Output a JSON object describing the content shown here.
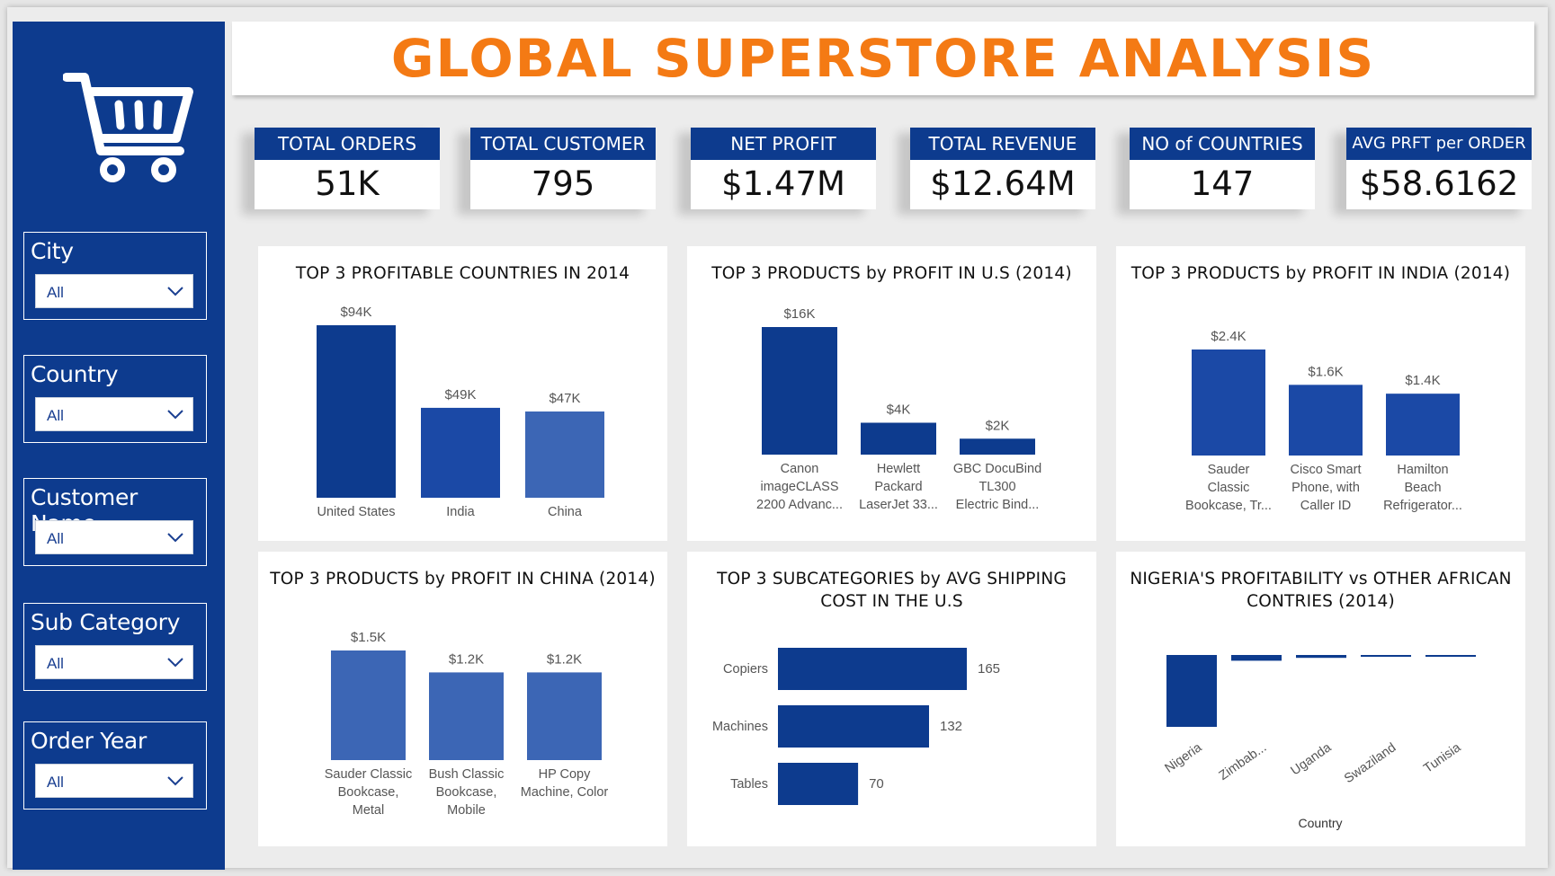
{
  "header": {
    "title": "GLOBAL SUPERSTORE ANALYSIS"
  },
  "sidebar": {
    "logo_icon": "shopping-cart-icon",
    "slicers": [
      {
        "label": "City",
        "value": "All"
      },
      {
        "label": "Country",
        "value": "All"
      },
      {
        "label": "Customer Name",
        "value": "All"
      },
      {
        "label": "Sub Category",
        "value": "All"
      },
      {
        "label": "Order Year",
        "value": "All"
      }
    ]
  },
  "kpis": [
    {
      "label": "TOTAL ORDERS",
      "value": "51K"
    },
    {
      "label": "TOTAL CUSTOMER",
      "value": "795"
    },
    {
      "label": "NET PROFIT",
      "value": "$1.47M"
    },
    {
      "label": "TOTAL REVENUE",
      "value": "$12.64M"
    },
    {
      "label": "NO of COUNTRIES",
      "value": "147"
    },
    {
      "label": "AVG PRFT per ORDER",
      "value": "$58.6162"
    }
  ],
  "colors": {
    "brand": "#0d3b8e",
    "title": "#f47a14",
    "bar_dark": "#0d3b8e",
    "bar_mid": "#1b49a6",
    "bar_light": "#3c66b5"
  },
  "chart_data": [
    {
      "id": "top-countries",
      "type": "bar",
      "title": "TOP 3 PROFITABLE COUNTRIES IN 2014",
      "categories": [
        "United States",
        "India",
        "China"
      ],
      "values": [
        94000,
        49000,
        47000
      ],
      "data_labels": [
        "$94K",
        "$49K",
        "$47K"
      ],
      "ylim": [
        0,
        94000
      ]
    },
    {
      "id": "top-products-us",
      "type": "bar",
      "title": "TOP 3 PRODUCTS by PROFIT IN U.S (2014)",
      "categories": [
        [
          "Canon",
          "imageCLASS",
          "2200 Advanc..."
        ],
        [
          "Hewlett",
          "Packard",
          "LaserJet 33..."
        ],
        [
          "GBC DocuBind",
          "TL300",
          "Electric Bind..."
        ]
      ],
      "values": [
        16000,
        4000,
        2000
      ],
      "data_labels": [
        "$16K",
        "$4K",
        "$2K"
      ],
      "ylim": [
        0,
        16000
      ]
    },
    {
      "id": "top-products-india",
      "type": "bar",
      "title": "TOP 3 PRODUCTS by PROFIT IN INDIA (2014)",
      "categories": [
        [
          "Sauder",
          "Classic",
          "Bookcase, Tr..."
        ],
        [
          "Cisco Smart",
          "Phone, with",
          "Caller ID"
        ],
        [
          "Hamilton",
          "Beach",
          "Refrigerator..."
        ]
      ],
      "values": [
        2400,
        1600,
        1400
      ],
      "data_labels": [
        "$2.4K",
        "$1.6K",
        "$1.4K"
      ],
      "ylim": [
        0,
        2400
      ]
    },
    {
      "id": "top-products-china",
      "type": "bar",
      "title": "TOP 3 PRODUCTS by PROFIT IN CHINA (2014)",
      "categories": [
        [
          "Sauder Classic",
          "Bookcase,",
          "Metal"
        ],
        [
          "Bush Classic",
          "Bookcase,",
          "Mobile"
        ],
        [
          "HP Copy",
          "Machine, Color"
        ]
      ],
      "values": [
        1500,
        1200,
        1200
      ],
      "data_labels": [
        "$1.5K",
        "$1.2K",
        "$1.2K"
      ],
      "ylim": [
        0,
        1500
      ]
    },
    {
      "id": "top-subcategories-shipping",
      "type": "bar",
      "orientation": "horizontal",
      "title": "TOP 3 SUBCATEGORIES by AVG SHIPPING COST IN THE U.S",
      "categories": [
        "Copiers",
        "Machines",
        "Tables"
      ],
      "values": [
        165,
        132,
        70
      ],
      "data_labels": [
        "165",
        "132",
        "70"
      ],
      "xlim": [
        0,
        165
      ]
    },
    {
      "id": "nigeria-profitability",
      "type": "bar",
      "title": "NIGERIA'S PROFITABILITY vs OTHER AFRICAN CONTRIES (2014)",
      "xlabel": "Country",
      "categories": [
        "Nigeria",
        "Zimbab...",
        "Uganda",
        "Swaziland",
        "Tunisia"
      ],
      "values": [
        -100,
        -8,
        -4,
        -1,
        -1
      ],
      "ylim": [
        -100,
        0
      ]
    }
  ]
}
